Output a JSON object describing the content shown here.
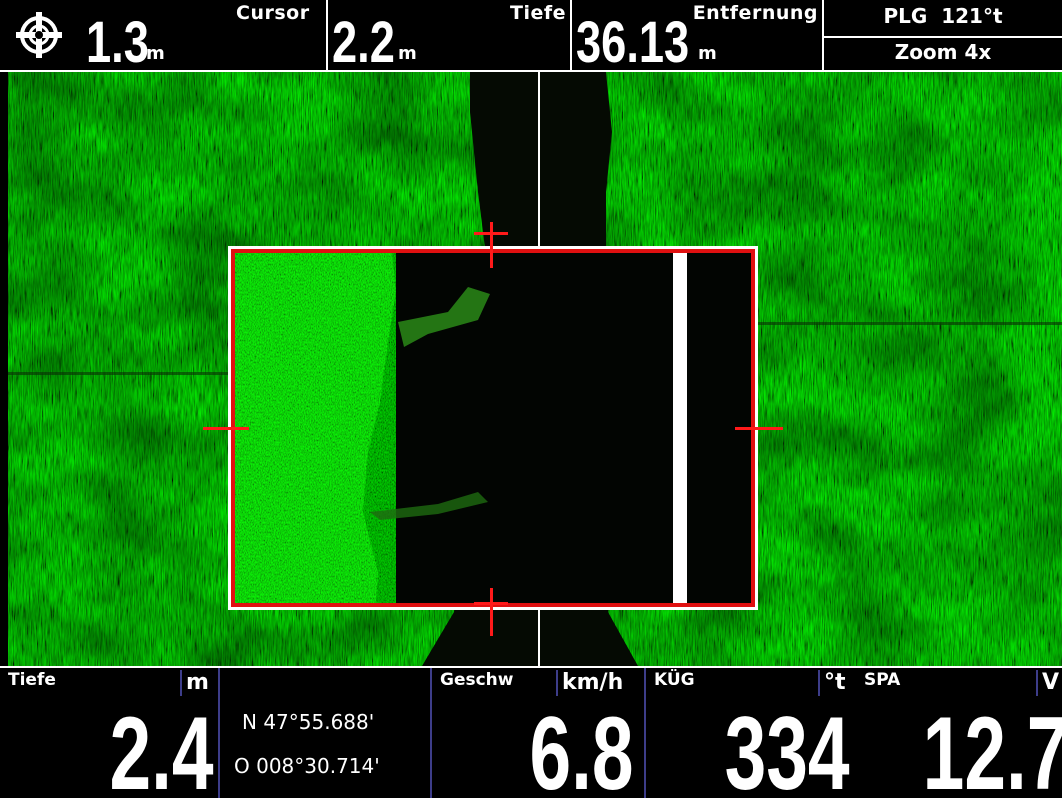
{
  "top": {
    "cursor_depth_value": "1.3",
    "cursor_depth_unit": "m",
    "cursor_label": "Cursor",
    "depth_value": "2.2",
    "depth_unit": "m",
    "depth_label": "Tiefe",
    "distance_value": "36.13",
    "distance_unit": "m",
    "distance_label": "Entfernung",
    "bearing": "PLG  121°t",
    "zoom": "Zoom 4x"
  },
  "bottom": {
    "depth": {
      "label": "Tiefe",
      "unit": "m",
      "value": "2.4"
    },
    "position": {
      "lat": "N 47°55.688'",
      "lon": "O 008°30.714'"
    },
    "speed": {
      "label": "Geschw",
      "unit": "km/h",
      "value": "6.8"
    },
    "cog": {
      "label": "KÜG",
      "unit": "°t",
      "value": "334"
    },
    "sog": {
      "label": "SPA",
      "unit": "V",
      "value": "12.7"
    }
  },
  "colors": {
    "sonar_bright": "#4dff2a",
    "sonar_dark": "#1a5a0e",
    "zoom_box": "#e01010",
    "cursor": "#ff0000"
  }
}
